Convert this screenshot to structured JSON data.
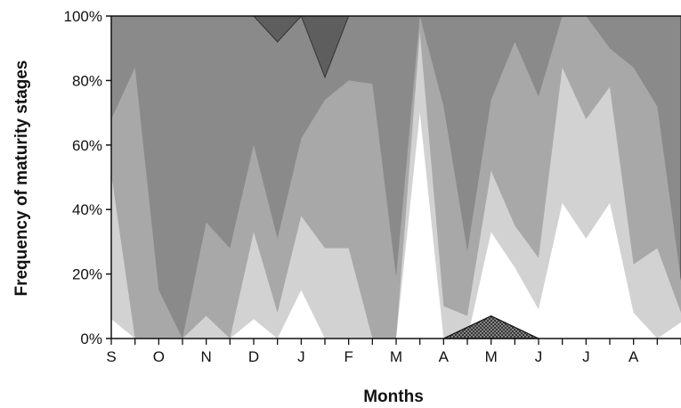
{
  "chart_data": {
    "type": "area",
    "stacking": "percent",
    "title": "",
    "xlabel": "Months",
    "ylabel": "Frequency of maturity stages",
    "ylim": [
      0,
      100
    ],
    "yticks": [
      "0%",
      "20%",
      "40%",
      "60%",
      "80%",
      "100%"
    ],
    "xticks": [
      "S",
      "O",
      "N",
      "D",
      "J",
      "F",
      "M",
      "A",
      "M",
      "J",
      "J",
      "A"
    ],
    "x": [
      0,
      0.5,
      1,
      1.5,
      2,
      2.5,
      3,
      3.5,
      4,
      4.5,
      5,
      5.5,
      6,
      6.5,
      7,
      7.5,
      8,
      8.5,
      9,
      9.5,
      10,
      10.5,
      11,
      11.5,
      12
    ],
    "boundaries": [
      {
        "fill": "#ffffff",
        "values": [
          6,
          0,
          0,
          0,
          0,
          0,
          6,
          0,
          15,
          0,
          0,
          0,
          0,
          70,
          0,
          0,
          33,
          22,
          9,
          42,
          31,
          42,
          8,
          0,
          5
        ]
      },
      {
        "fill": "#d2d2d2",
        "values": [
          51,
          0,
          0,
          0,
          7,
          0,
          33,
          8,
          38,
          28,
          28,
          0,
          0,
          95,
          10,
          7,
          52,
          35,
          25,
          84,
          68,
          78,
          23,
          28,
          8
        ]
      },
      {
        "fill": "#a8a8a8",
        "values": [
          68,
          84,
          15,
          0,
          36,
          28,
          60,
          31,
          62,
          74,
          80,
          79,
          19,
          100,
          72,
          27,
          74,
          92,
          75,
          100,
          100,
          90,
          84,
          72,
          18
        ]
      },
      {
        "fill": "#8a8a8a",
        "values": [
          100,
          100,
          100,
          100,
          100,
          100,
          100,
          92,
          100,
          81,
          100,
          100,
          100,
          100,
          100,
          100,
          100,
          100,
          100,
          100,
          100,
          100,
          100,
          100,
          100
        ]
      },
      {
        "fill": "#5e5e5e",
        "values": [
          100,
          100,
          100,
          100,
          100,
          100,
          100,
          100,
          100,
          100,
          100,
          100,
          100,
          100,
          100,
          100,
          100,
          100,
          100,
          100,
          100,
          100,
          100,
          100,
          100
        ]
      }
    ],
    "hatched_stage": {
      "x": [
        7,
        8,
        9
      ],
      "values": [
        0,
        7,
        0
      ]
    },
    "grid": false,
    "legend": "none"
  }
}
